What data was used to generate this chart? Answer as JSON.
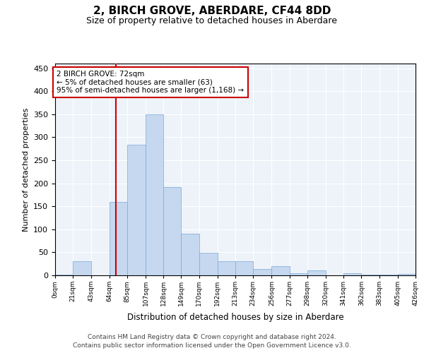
{
  "title": "2, BIRCH GROVE, ABERDARE, CF44 8DD",
  "subtitle": "Size of property relative to detached houses in Aberdare",
  "xlabel": "Distribution of detached houses by size in Aberdare",
  "ylabel": "Number of detached properties",
  "property_label": "2 BIRCH GROVE: 72sqm",
  "annotation_line1": "← 5% of detached houses are smaller (63)",
  "annotation_line2": "95% of semi-detached houses are larger (1,168) →",
  "footer_line1": "Contains HM Land Registry data © Crown copyright and database right 2024.",
  "footer_line2": "Contains public sector information licensed under the Open Government Licence v3.0.",
  "bin_edges": [
    0,
    21,
    43,
    64,
    85,
    107,
    128,
    149,
    170,
    192,
    213,
    234,
    256,
    277,
    298,
    320,
    341,
    362,
    383,
    405,
    426
  ],
  "bar_values": [
    2,
    30,
    0,
    160,
    283,
    350,
    191,
    90,
    49,
    31,
    31,
    14,
    20,
    5,
    10,
    0,
    5,
    2,
    2,
    3
  ],
  "bar_color": "#c5d8f0",
  "bar_edge_color": "#7aa8d4",
  "vline_x": 72,
  "vline_color": "#cc0000",
  "annotation_box_color": "#cc0000",
  "background_color": "#eef3fa",
  "ylim": [
    0,
    460
  ],
  "yticks": [
    0,
    50,
    100,
    150,
    200,
    250,
    300,
    350,
    400,
    450
  ],
  "title_fontsize": 11,
  "subtitle_fontsize": 9
}
